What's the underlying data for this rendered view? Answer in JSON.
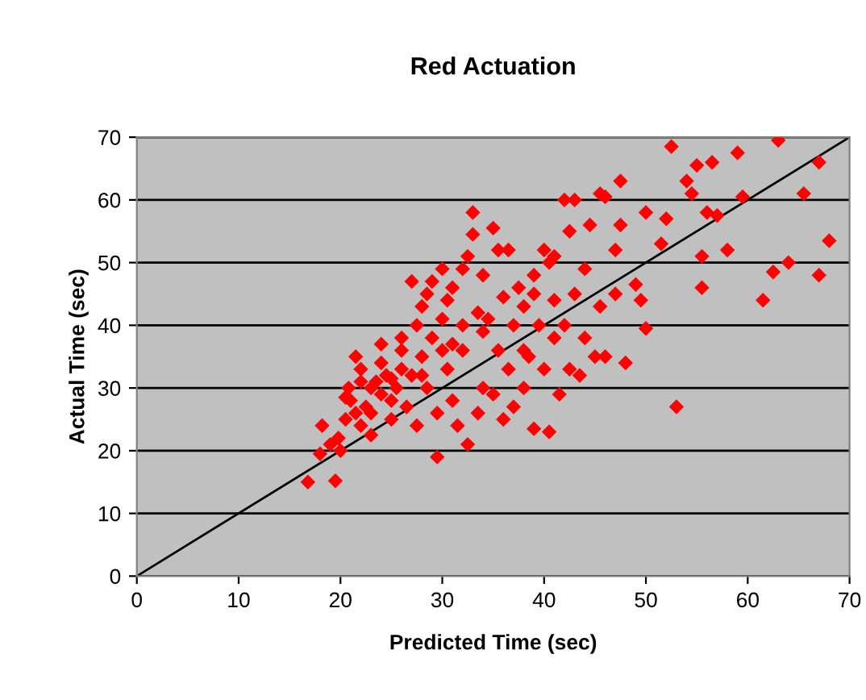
{
  "chart_data": {
    "type": "scatter",
    "title": "Red Actuation",
    "xlabel": "Predicted Time (sec)",
    "ylabel": "Actual Time (sec)",
    "xlim": [
      0,
      70
    ],
    "xticks": [
      0,
      10,
      20,
      30,
      40,
      50,
      60,
      70
    ],
    "ylim": [
      0,
      70
    ],
    "yticks": [
      0,
      10,
      20,
      30,
      40,
      50,
      60,
      70
    ],
    "grid": "y",
    "marker": "diamond",
    "series": [
      {
        "color": "#ff0000",
        "x": [
          16.8,
          19.5,
          18,
          18.2,
          19,
          19.8,
          20,
          20.5,
          20.8,
          21,
          21.5,
          22,
          22,
          22.5,
          23,
          23,
          23.5,
          24,
          24,
          24.5,
          25,
          25,
          25.5,
          26,
          26,
          26.5,
          27,
          27.5,
          27.5,
          28,
          28,
          28.5,
          28.5,
          29,
          29,
          29.5,
          29.5,
          30,
          30,
          30.5,
          30.5,
          31,
          31,
          31.5,
          32,
          32,
          32.5,
          32.5,
          33,
          33,
          33.5,
          33.5,
          34,
          34,
          34.5,
          35,
          35,
          35.5,
          35.5,
          36,
          36,
          36.5,
          37,
          37,
          37.5,
          38,
          38,
          38.5,
          39,
          39,
          39.5,
          40,
          40,
          40.5,
          40.5,
          41,
          41,
          41.5,
          42,
          42,
          42.5,
          42.5,
          43,
          43,
          43.5,
          44,
          44,
          44.5,
          45,
          45.5,
          45.5,
          46,
          46,
          47,
          47,
          47.5,
          47.5,
          48,
          49,
          49.5,
          50,
          50,
          51.5,
          52,
          52.5,
          53,
          54,
          54.5,
          55,
          55.5,
          55.5,
          56,
          56.5,
          57,
          58,
          59,
          59.5,
          61.5,
          62.5,
          63,
          64,
          65.5,
          67,
          67,
          68,
          27,
          26,
          24,
          22,
          20.5,
          21.5,
          23,
          25,
          28,
          30,
          31,
          32,
          34,
          36.5,
          38,
          41,
          39
        ],
        "values": [
          15,
          15.2,
          19.5,
          24,
          21,
          22,
          20,
          25,
          30,
          28,
          35,
          33,
          24,
          27,
          30,
          26,
          31,
          29,
          34,
          32,
          28,
          25,
          30,
          36,
          33,
          27,
          32,
          40,
          24,
          43,
          35,
          45,
          30,
          47,
          38,
          19,
          26,
          49,
          41,
          44,
          33,
          28,
          37,
          24,
          49,
          36,
          51,
          21,
          58,
          54.5,
          42,
          26,
          48,
          30,
          41,
          55.5,
          29,
          52,
          36,
          44.5,
          25,
          33,
          40,
          27,
          46,
          43,
          30,
          35,
          48,
          23.5,
          40,
          52,
          33,
          50,
          23,
          44,
          38,
          29,
          60,
          40,
          55,
          33,
          60,
          45,
          32,
          49,
          38,
          56,
          35,
          61,
          43,
          60.5,
          35,
          52,
          45,
          56,
          63,
          34,
          46.5,
          44,
          58,
          39.5,
          53,
          57,
          68.5,
          27,
          63,
          61,
          65.5,
          46,
          51,
          58,
          66,
          57.5,
          52,
          67.5,
          60.5,
          44,
          48.5,
          69.5,
          50,
          61,
          66,
          48,
          53.5,
          47,
          38,
          37,
          31,
          28.5,
          26,
          22.5,
          31.5,
          32,
          36,
          46,
          40,
          39,
          52,
          36,
          51,
          45
        ]
      },
      {
        "type": "line",
        "color": "#000000",
        "marker": "none",
        "x": [
          0,
          70
        ],
        "values": [
          0,
          70
        ]
      }
    ]
  }
}
